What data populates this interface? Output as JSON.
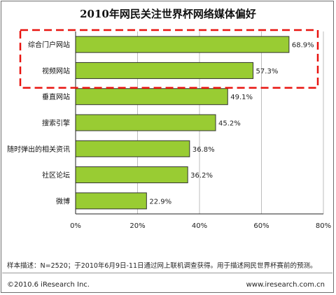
{
  "chart_data": {
    "type": "bar",
    "orientation": "horizontal",
    "title": "2010年网民关注世界杯网络媒体偏好",
    "categories": [
      "综合门户网站",
      "视频网站",
      "垂直网站",
      "搜索引擎",
      "随时弹出的相关资讯",
      "社区论坛",
      "微博"
    ],
    "values": [
      68.9,
      57.3,
      49.1,
      45.2,
      36.8,
      36.2,
      22.9
    ],
    "value_labels": [
      "68.9%",
      "57.3%",
      "49.1%",
      "45.2%",
      "36.8%",
      "36.2%",
      "22.9%"
    ],
    "x_ticks": [
      0,
      20,
      40,
      60,
      80
    ],
    "x_tick_labels": [
      "0%",
      "20%",
      "40%",
      "60%",
      "80%"
    ],
    "xlim": [
      0,
      80
    ],
    "grid": "vertical",
    "bar_color": "#99cc33",
    "bar_border_color": "#333333",
    "highlight": {
      "categories": [
        "综合门户网站",
        "视频网站"
      ],
      "color": "#e8130f",
      "style": "dashed"
    }
  },
  "footer": {
    "note": "样本描述：N=2520；于2010年6月9日-11日通过网上联机调查获得。用于描述网民世界杯赛前的预测。",
    "copyright": "©2010.6 iResearch Inc.",
    "website": "www.iresearch.com.cn"
  }
}
